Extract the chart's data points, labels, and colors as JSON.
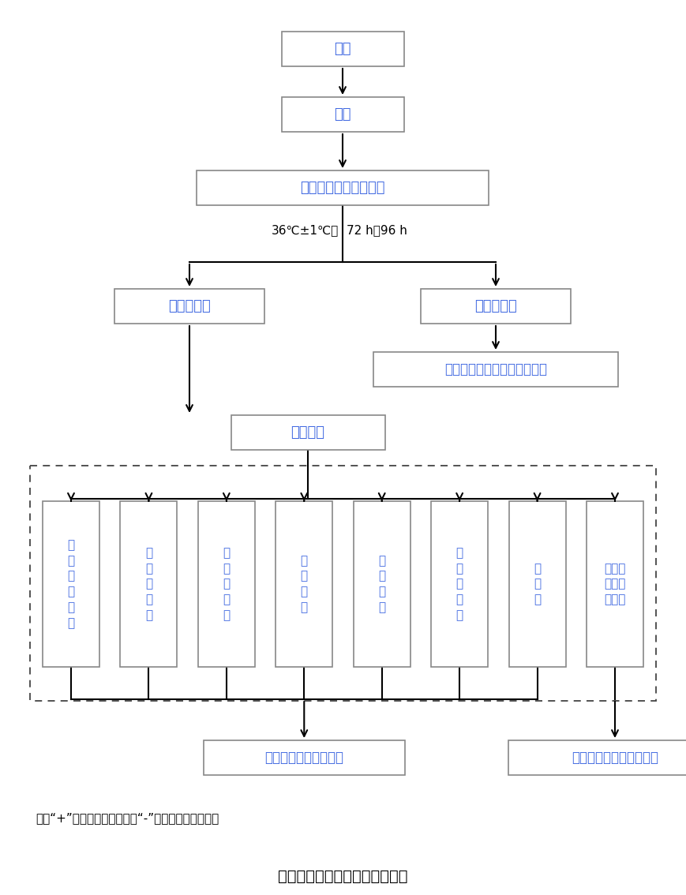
{
  "title": "枯草芽孢杆菌黑色变种检测流程",
  "note": "注：“+”表示反应结果阳性，“-”表示反应结果阴性。",
  "text_color": "#4169E1",
  "box_edge_color": "#888888",
  "arrow_color": "#000000",
  "bg_color": "#FFFFFF",
  "sample_label": "样品",
  "filter_label": "过滤",
  "culture_label": "酪氨酸琼脂培养基培养",
  "condition_left": "36℃±1℃，",
  "condition_right": "72 h～96 h",
  "has_colony_label": "有菌落生长",
  "no_colony_label": "无菌落生长",
  "not_detected_label": "未检出枯草芽孢杆菌黑色变种",
  "suspicious_label": "可疑菌落",
  "result_pos_label": "枯草芽孢杆菌黑色变种",
  "result_neg_label": "非枯草芽孢杆菌黑色变种",
  "test_labels": [
    "革\n兰\n氏\n染\n色\n＋",
    "芽\n孢\n染\n色\n＋",
    "甘\n油\n利\n用\n＋",
    "甘\n露\n糖\n＋",
    "甘\n露\n醇\n－",
    "苦\n杏\n仁\n苷\n－",
    "淀\n粉\n＋",
    "反应结\n果与左\n侧不同"
  ]
}
